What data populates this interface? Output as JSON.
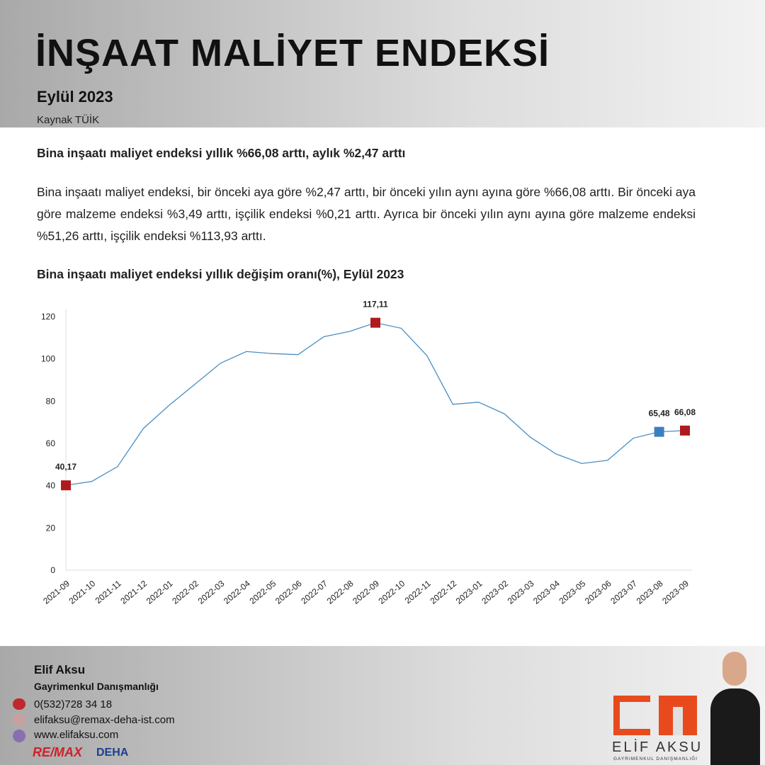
{
  "header": {
    "title": "İNŞAAT MALİYET ENDEKSİ",
    "subtitle": "Eylül 2023",
    "source": "Kaynak TÜİK"
  },
  "article": {
    "headline": "Bina inşaatı maliyet endeksi yıllık %66,08 arttı, aylık %2,47 arttı",
    "body": "Bina inşaatı maliyet endeksi, bir önceki aya göre %2,47 arttı, bir önceki yılın aynı ayına göre %66,08 arttı. Bir önceki aya göre malzeme endeksi %3,49 arttı, işçilik endeksi %0,21 arttı. Ayrıca bir önceki yılın aynı ayına göre malzeme endeksi %51,26 arttı, işçilik endeksi %113,93 arttı."
  },
  "chart_data": {
    "type": "line",
    "title": "Bina inşaatı maliyet endeksi yıllık değişim oranı(%), Eylül 2023",
    "categories": [
      "2021-09",
      "2021-10",
      "2021-11",
      "2021-12",
      "2022-01",
      "2022-02",
      "2022-03",
      "2022-04",
      "2022-05",
      "2022-06",
      "2022-07",
      "2022-08",
      "2022-09",
      "2022-10",
      "2022-11",
      "2022-12",
      "2023-01",
      "2023-02",
      "2023-03",
      "2023-04",
      "2023-05",
      "2023-06",
      "2023-07",
      "2023-08",
      "2023-09"
    ],
    "values": [
      40.17,
      42,
      49,
      67,
      78,
      88,
      98,
      103.5,
      102.5,
      102,
      110.5,
      113,
      117.11,
      114.5,
      101.5,
      78.5,
      79.5,
      74,
      63,
      55,
      50.5,
      52,
      62.5,
      65.48,
      66.08
    ],
    "value_labels": [
      "40,17",
      null,
      null,
      null,
      null,
      null,
      null,
      null,
      null,
      null,
      null,
      null,
      "117,11",
      null,
      null,
      null,
      null,
      null,
      null,
      null,
      null,
      null,
      null,
      "65,48",
      "66,08"
    ],
    "color": "#4a8fc4",
    "markers": [
      {
        "index": 0,
        "color": "#b0191e"
      },
      {
        "index": 12,
        "color": "#b0191e"
      },
      {
        "index": 23,
        "color": "#3a7fc0"
      },
      {
        "index": 24,
        "color": "#b0191e"
      }
    ],
    "ylim": [
      0,
      120
    ],
    "yticks": [
      0,
      20,
      40,
      60,
      80,
      100,
      120
    ],
    "grid": false
  },
  "footer": {
    "name": "Elif Aksu",
    "role": "Gayrimenkul Danışmanlığı",
    "phone": "0(532)728 34 18",
    "email": "elifaksu@remax-deha-ist.com",
    "web": "www.elifaksu.com",
    "brand": "RE/MAX",
    "office": "DEHA",
    "logo_name": "ELİF AKSU",
    "logo_sub": "GAYRIMENKUL DANIŞMANLIĞI"
  }
}
